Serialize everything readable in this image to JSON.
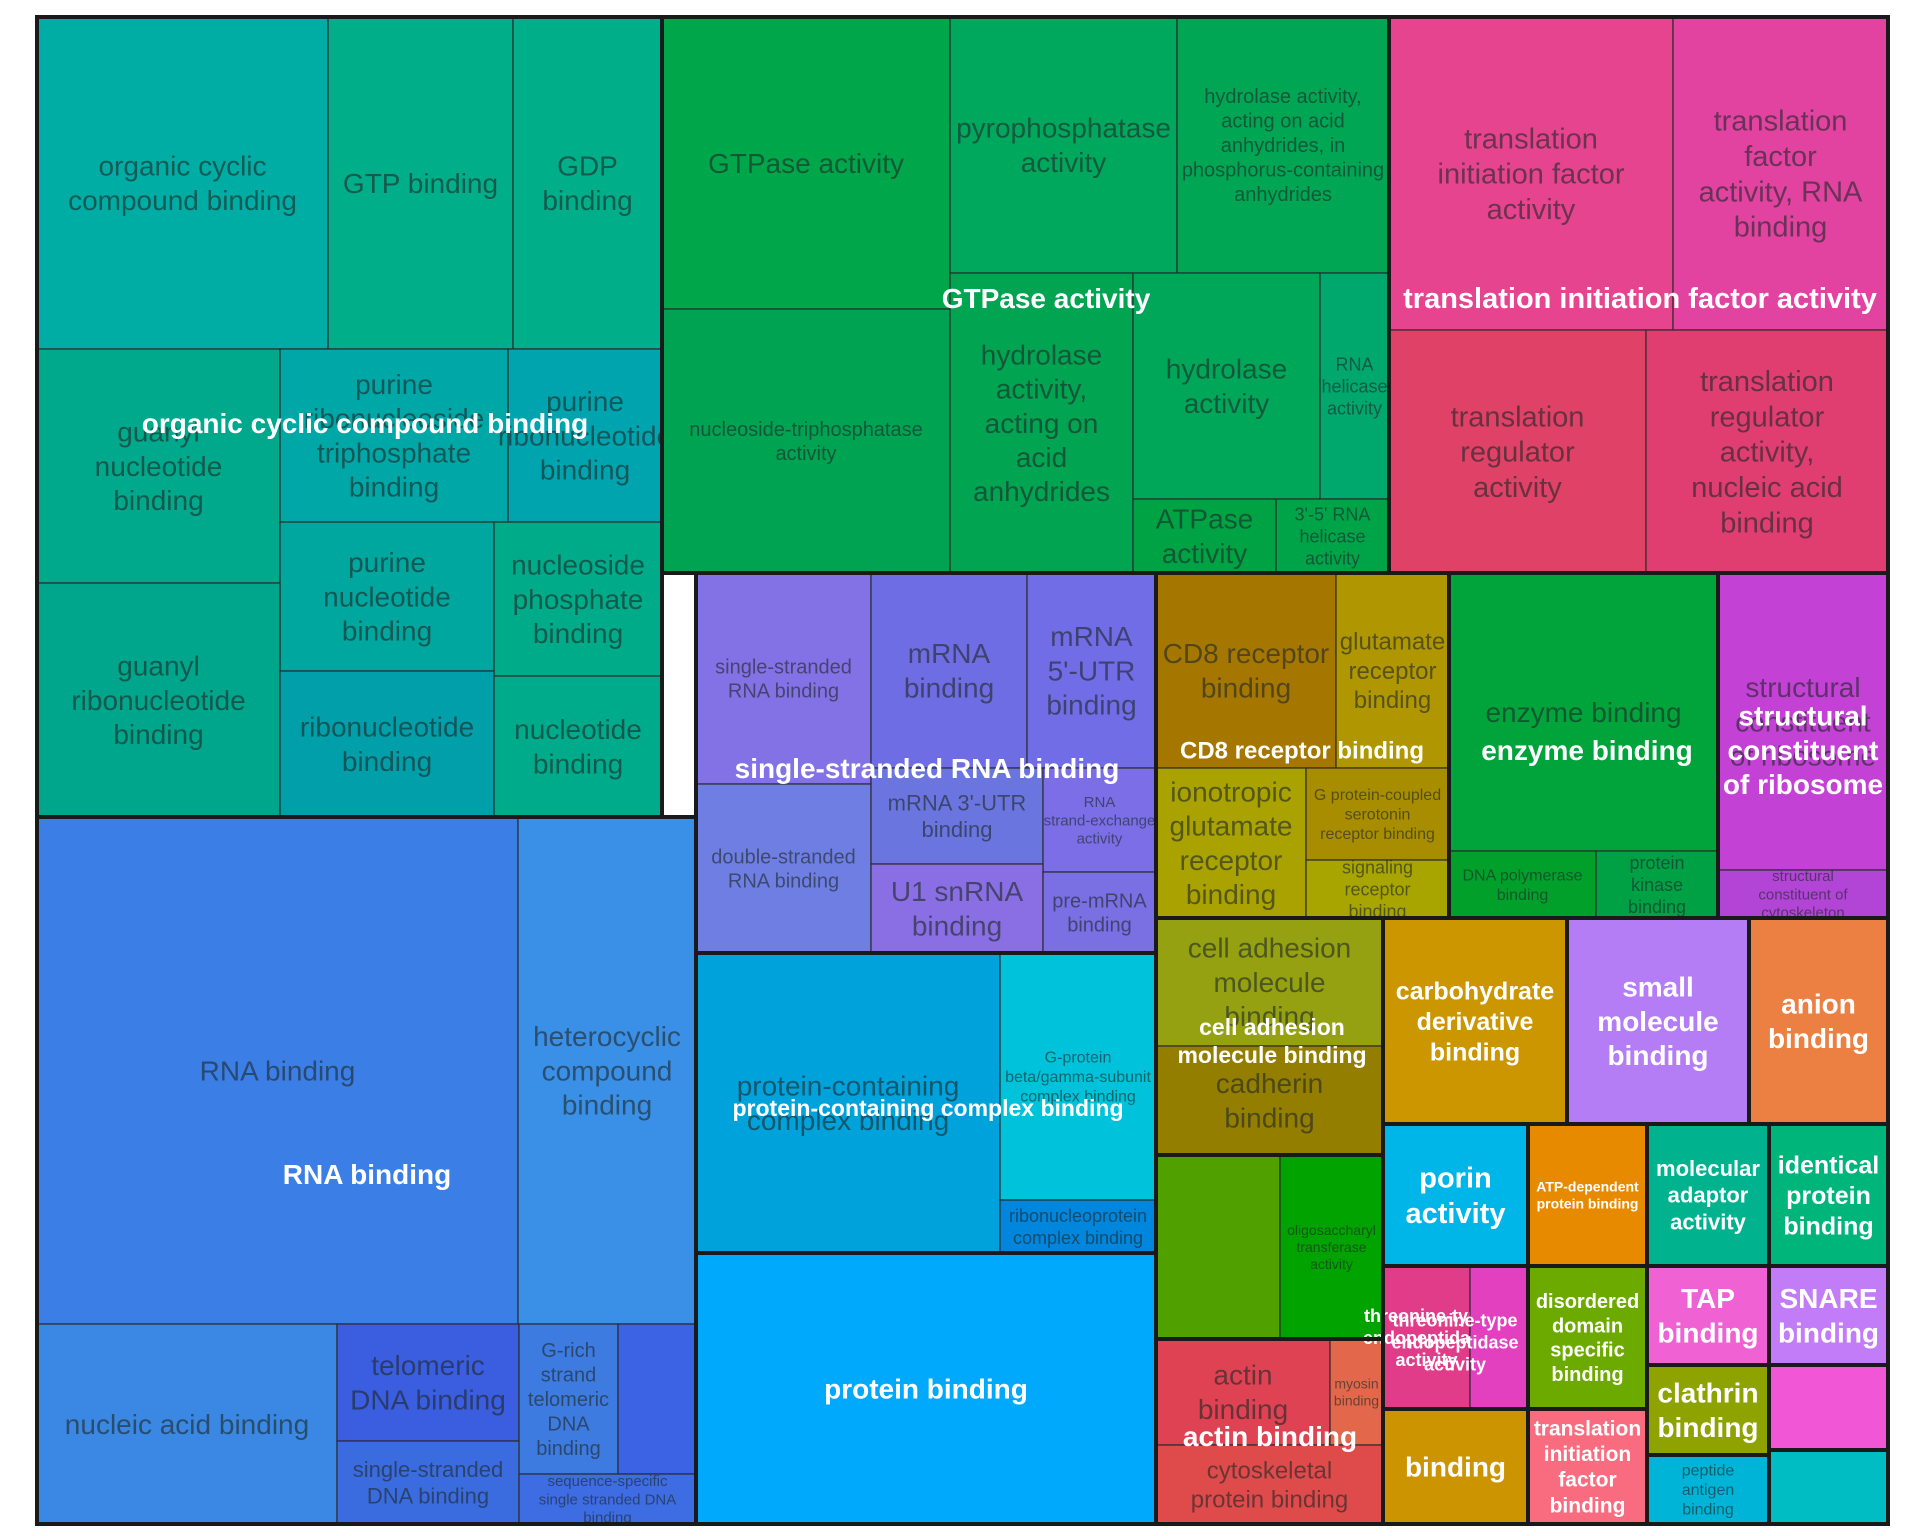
{
  "chart_data": {
    "type": "treemap",
    "groups": [
      {
        "name": "organic cyclic compound binding",
        "color": "#00A99B",
        "leaves": [
          {
            "label": "organic cyclic compound binding",
            "color": "#00ADA4"
          },
          {
            "label": "GTP binding",
            "color": "#00AE89"
          },
          {
            "label": "GDP binding",
            "color": "#00AE89"
          },
          {
            "label": "guanyl nucleotide binding",
            "color": "#00A98B"
          },
          {
            "label": "purine ribonucleoside triphosphate binding",
            "color": "#00A7A7"
          },
          {
            "label": "purine ribonucleotide binding",
            "color": "#00A4AF"
          },
          {
            "label": "purine nucleotide binding",
            "color": "#00A79E"
          },
          {
            "label": "nucleoside phosphate binding",
            "color": "#00AB89"
          },
          {
            "label": "guanyl ribonucleotide binding",
            "color": "#00A68B"
          },
          {
            "label": "ribonucleotide binding",
            "color": "#009FA9"
          },
          {
            "label": "nucleotide binding",
            "color": "#00AB8B"
          }
        ]
      },
      {
        "name": "GTPase activity",
        "color": "#00A34F",
        "leaves": [
          {
            "label": "GTPase activity",
            "color": "#00A74A"
          },
          {
            "label": "pyrophosphatase activity",
            "color": "#00A85E"
          },
          {
            "label": "hydrolase activity, acting on acid anhydrides, in phosphorus-containing anhydrides",
            "color": "#00A653"
          },
          {
            "label": "nucleoside-triphosphatase activity",
            "color": "#00A351"
          },
          {
            "label": "hydrolase activity, acting on acid anhydrides",
            "color": "#00A451"
          },
          {
            "label": "hydrolase activity",
            "color": "#00A759"
          },
          {
            "label": "RNA helicase activity",
            "color": "#00A86E"
          },
          {
            "label": "ATPase activity",
            "color": "#00A344"
          },
          {
            "label": "3'-5' RNA helicase activity",
            "color": "#00A448"
          }
        ]
      },
      {
        "name": "translation initiation factor activity",
        "color": "#E4418B",
        "leaves": [
          {
            "label": "translation initiation factor activity",
            "color": "#E6448E"
          },
          {
            "label": "translation factor activity, RNA binding",
            "color": "#E243A0"
          },
          {
            "label": "translation regulator activity",
            "color": "#E04167"
          },
          {
            "label": "translation regulator activity, nucleic acid binding",
            "color": "#E03E70"
          }
        ]
      },
      {
        "name": "RNA binding",
        "color": "#3A80E4",
        "leaves": [
          {
            "label": "RNA binding",
            "color": "#3B7FE6"
          },
          {
            "label": "heterocyclic compound binding",
            "color": "#3A8FE6"
          },
          {
            "label": "nucleic acid binding",
            "color": "#3A88E3"
          },
          {
            "label": "telomeric DNA binding",
            "color": "#3B5EE0"
          },
          {
            "label": "G-rich strand telomeric DNA binding",
            "color": "#3D7BE0"
          },
          {
            "label": "",
            "color": "#3B63E4"
          },
          {
            "label": "single-stranded DNA binding",
            "color": "#3B6CDF"
          },
          {
            "label": "sequence-specific single stranded DNA binding",
            "color": "#3D6CE3"
          }
        ]
      },
      {
        "name": "single-stranded RNA binding",
        "color": "#7276E4",
        "leaves": [
          {
            "label": "single-stranded RNA binding",
            "color": "#8371E6"
          },
          {
            "label": "mRNA binding",
            "color": "#6E6DE3"
          },
          {
            "label": "mRNA 5'-UTR binding",
            "color": "#716DE6"
          },
          {
            "label": "double-stranded RNA binding",
            "color": "#6E7EE3"
          },
          {
            "label": "mRNA 3'-UTR binding",
            "color": "#6B75E0"
          },
          {
            "label": "RNA strand-exchange activity",
            "color": "#7B6EE6"
          },
          {
            "label": "U1 snRNA binding",
            "color": "#8A6EE3"
          },
          {
            "label": "pre-mRNA binding",
            "color": "#7A6FE3"
          }
        ]
      },
      {
        "name": "CD8 receptor binding",
        "color": "#A88800",
        "leaves": [
          {
            "label": "CD8 receptor binding",
            "color": "#A67700"
          },
          {
            "label": "glutamate receptor binding",
            "color": "#B09600"
          },
          {
            "label": "ionotropic glutamate receptor binding",
            "color": "#A9A200"
          },
          {
            "label": "G protein-coupled serotonin receptor binding",
            "color": "#A98D00"
          },
          {
            "label": "signaling receptor binding",
            "color": "#A8A400"
          }
        ]
      },
      {
        "name": "enzyme binding",
        "color": "#00A43A",
        "leaves": [
          {
            "label": "enzyme binding",
            "color": "#00A43A"
          },
          {
            "label": "DNA polymerase binding",
            "color": "#00A02A"
          },
          {
            "label": "protein kinase binding",
            "color": "#00A144"
          }
        ]
      },
      {
        "name": "structural constituent of ribosome",
        "color": "#C640D0",
        "leaves": [
          {
            "label": "structural constituent of ribosome",
            "color": "#C441D5"
          },
          {
            "label": "structural constituent of cytoskeleton",
            "color": "#B244D6"
          }
        ]
      },
      {
        "name": "protein-containing complex binding",
        "color": "#00A4DB",
        "leaves": [
          {
            "label": "protein-containing complex binding",
            "color": "#00A2DC"
          },
          {
            "label": "G-protein beta/gamma-subunit complex binding",
            "color": "#00C2DB"
          },
          {
            "label": "ribonucleoprotein complex binding",
            "color": "#0086DD"
          }
        ]
      },
      {
        "name": "protein binding",
        "color": "#00A8F9",
        "leaves": [
          {
            "label": "protein binding",
            "color": "#00A9FB"
          }
        ]
      },
      {
        "name": "cell adhesion molecule binding",
        "color": "#978B00",
        "leaves": [
          {
            "label": "cell adhesion molecule binding",
            "color": "#95A111"
          },
          {
            "label": "cadherin binding",
            "color": "#937E00"
          }
        ]
      },
      {
        "name": "oligosaccharyl transferase activity",
        "color": "#3FA300",
        "leaves": [
          {
            "label": "",
            "color": "#50A100"
          },
          {
            "label": "oligosaccharyl transferase activity",
            "color": "#00A300"
          }
        ]
      },
      {
        "name": "actin binding",
        "color": "#E04550",
        "leaves": [
          {
            "label": "actin binding",
            "color": "#DF4252"
          },
          {
            "label": "myosin binding",
            "color": "#E3674A"
          },
          {
            "label": "cytoskeletal protein binding",
            "color": "#DF4B4A"
          }
        ]
      },
      {
        "name": "carbohydrate derivative binding",
        "color": "#CC9600",
        "leaves": [
          {
            "label": "carbohydrate derivative binding",
            "color": "#CC9600"
          }
        ]
      },
      {
        "name": "small molecule binding",
        "color": "#B27DF5",
        "leaves": [
          {
            "label": "small molecule binding",
            "color": "#B47CF5"
          }
        ]
      },
      {
        "name": "anion binding",
        "color": "#ED8043",
        "leaves": [
          {
            "label": "anion binding",
            "color": "#EC8043"
          }
        ]
      },
      {
        "name": "porin activity",
        "color": "#00B7E6",
        "leaves": [
          {
            "label": "porin activity",
            "color": "#00B6E8"
          }
        ]
      },
      {
        "name": "ATP-dependent protein binding",
        "color": "#E88A00",
        "leaves": [
          {
            "label": "ATP-dependent protein binding",
            "color": "#E88A00"
          }
        ]
      },
      {
        "name": "molecular adaptor activity",
        "color": "#00B48A",
        "leaves": [
          {
            "label": "molecular adaptor activity",
            "color": "#00B38E"
          }
        ]
      },
      {
        "name": "identical protein binding",
        "color": "#00B57A",
        "leaves": [
          {
            "label": "identical protein binding",
            "color": "#00B57A"
          }
        ]
      },
      {
        "name": "threonine-type endopeptidase activity",
        "color": "#E340A5",
        "leaves": [
          {
            "label": "threonine-type endopeptidase activity",
            "color": "#E03C8A"
          },
          {
            "label": "",
            "color": "#E240BF"
          }
        ]
      },
      {
        "name": "disordered domain specific binding",
        "color": "#6DAA00",
        "leaves": [
          {
            "label": "disordered domain specific binding",
            "color": "#6DAA00"
          }
        ]
      },
      {
        "name": "TAP binding",
        "color": "#F060D0",
        "leaves": [
          {
            "label": "TAP binding",
            "color": "#F062D4"
          }
        ]
      },
      {
        "name": "SNARE binding",
        "color": "#C57CF5",
        "leaves": [
          {
            "label": "SNARE binding",
            "color": "#C27CF7"
          }
        ]
      },
      {
        "name": "clathrin binding",
        "color": "#8DA200",
        "leaves": [
          {
            "label": "clathrin binding",
            "color": "#8EA200"
          }
        ]
      },
      {
        "name": "",
        "color": "#F256D6",
        "leaves": [
          {
            "label": "",
            "color": "#F056D6"
          }
        ]
      },
      {
        "name": "binding",
        "color": "#CC9500",
        "leaves": [
          {
            "label": "binding",
            "color": "#CC9400"
          }
        ]
      },
      {
        "name": "translation initiation factor binding",
        "color": "#F86A7C",
        "leaves": [
          {
            "label": "translation initiation factor binding",
            "color": "#F96B7E"
          }
        ]
      },
      {
        "name": "peptide antigen binding",
        "color": "#00B3D6",
        "leaves": [
          {
            "label": "peptide antigen binding",
            "color": "#00B4D8"
          }
        ]
      },
      {
        "name": "",
        "color": "#00BDC2",
        "leaves": [
          {
            "label": "",
            "color": "#00BDC3"
          }
        ]
      }
    ]
  }
}
